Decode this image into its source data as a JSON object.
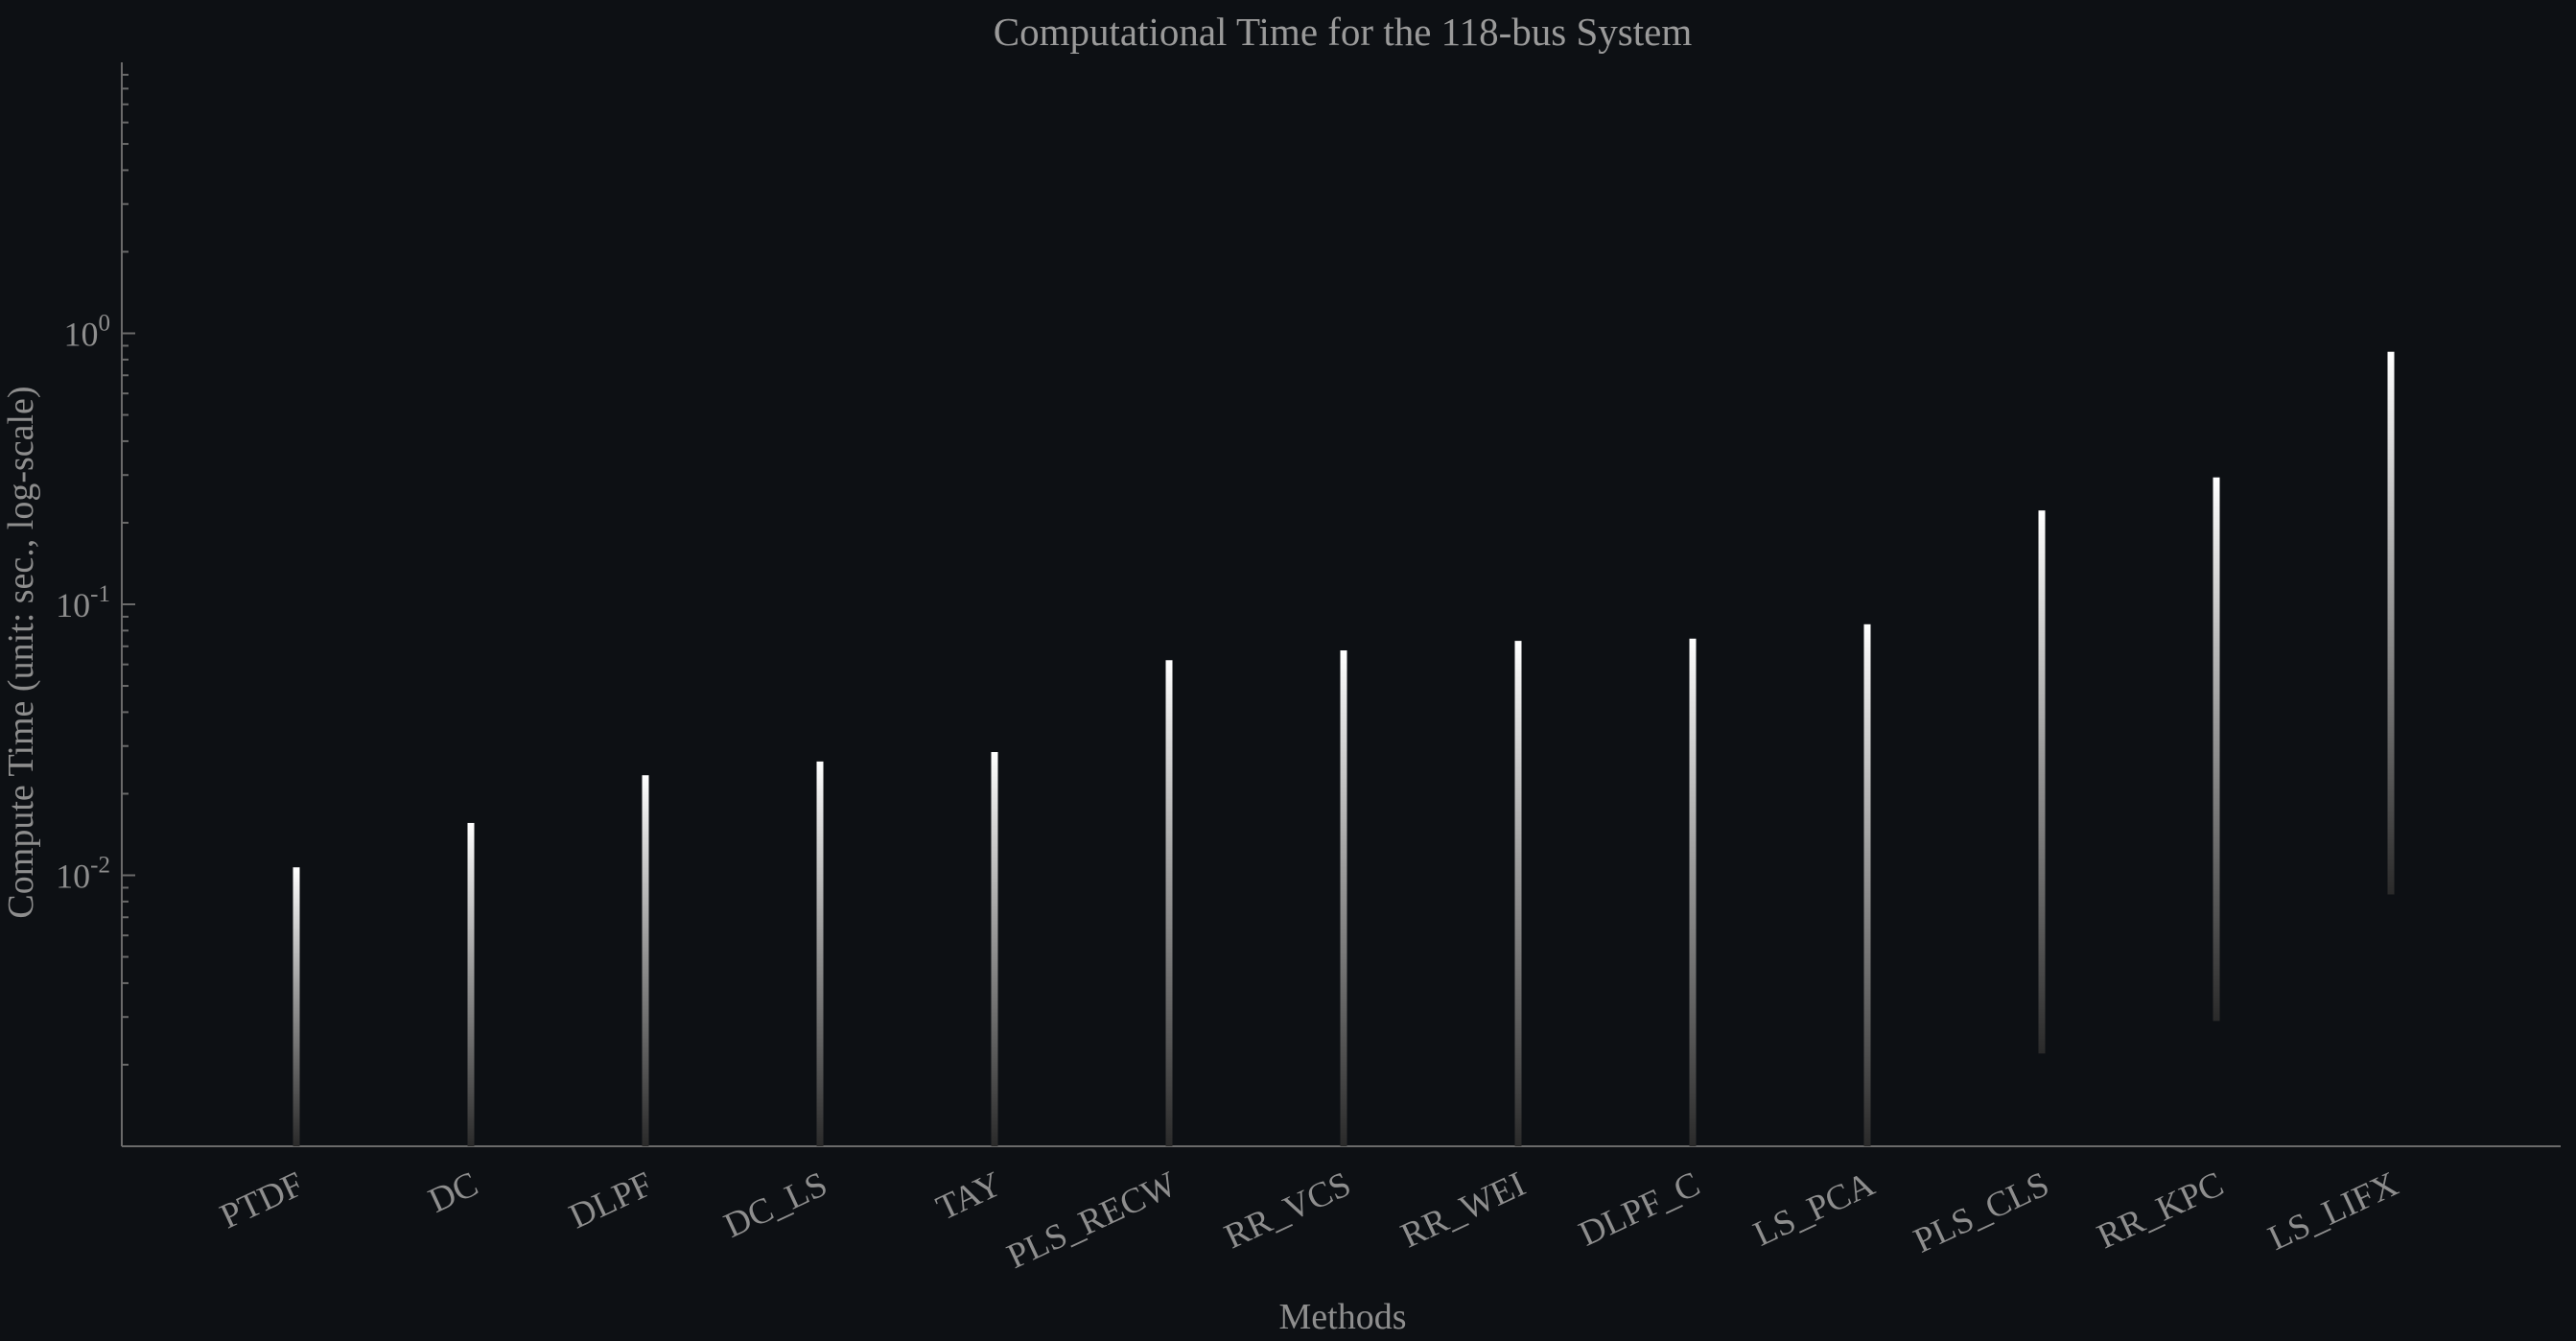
{
  "chart_data": {
    "type": "bar",
    "title": "Computational Time for the 118-bus System",
    "xlabel": "Methods",
    "ylabel": "Compute Time (unit: sec., log-scale)",
    "yscale": "log",
    "ylim": [
      0.001,
      10
    ],
    "yticks": [
      {
        "base": "10",
        "exp": "-2",
        "value": 0.01
      },
      {
        "base": "10",
        "exp": "-1",
        "value": 0.1
      },
      {
        "base": "10",
        "exp": "0",
        "value": 1
      }
    ],
    "categories": [
      "PTDF",
      "DC",
      "DLPF",
      "DC_LS",
      "TAY",
      "PLS_RECW",
      "RR_VCS",
      "RR_WEI",
      "DLPF_C",
      "LS_PCA",
      "PLS_CLS",
      "RR_KPC",
      "LS_LIFX"
    ],
    "values": [
      0.0107,
      0.0156,
      0.0234,
      0.0263,
      0.0285,
      0.0622,
      0.0676,
      0.0733,
      0.0747,
      0.0844,
      0.222,
      0.294,
      0.855
    ],
    "lower": [
      0.001,
      0.001,
      0.001,
      0.001,
      0.001,
      0.001,
      0.001,
      0.001,
      0.001,
      0.001,
      0.0022,
      0.0029,
      0.0085
    ],
    "grid": false,
    "colors": {
      "background": "#0d1014",
      "bar_top": "#ffffff",
      "bar_bottom": "#2a2a2a",
      "axis": "#6a6a6a",
      "text": "#8e8e8e"
    }
  }
}
